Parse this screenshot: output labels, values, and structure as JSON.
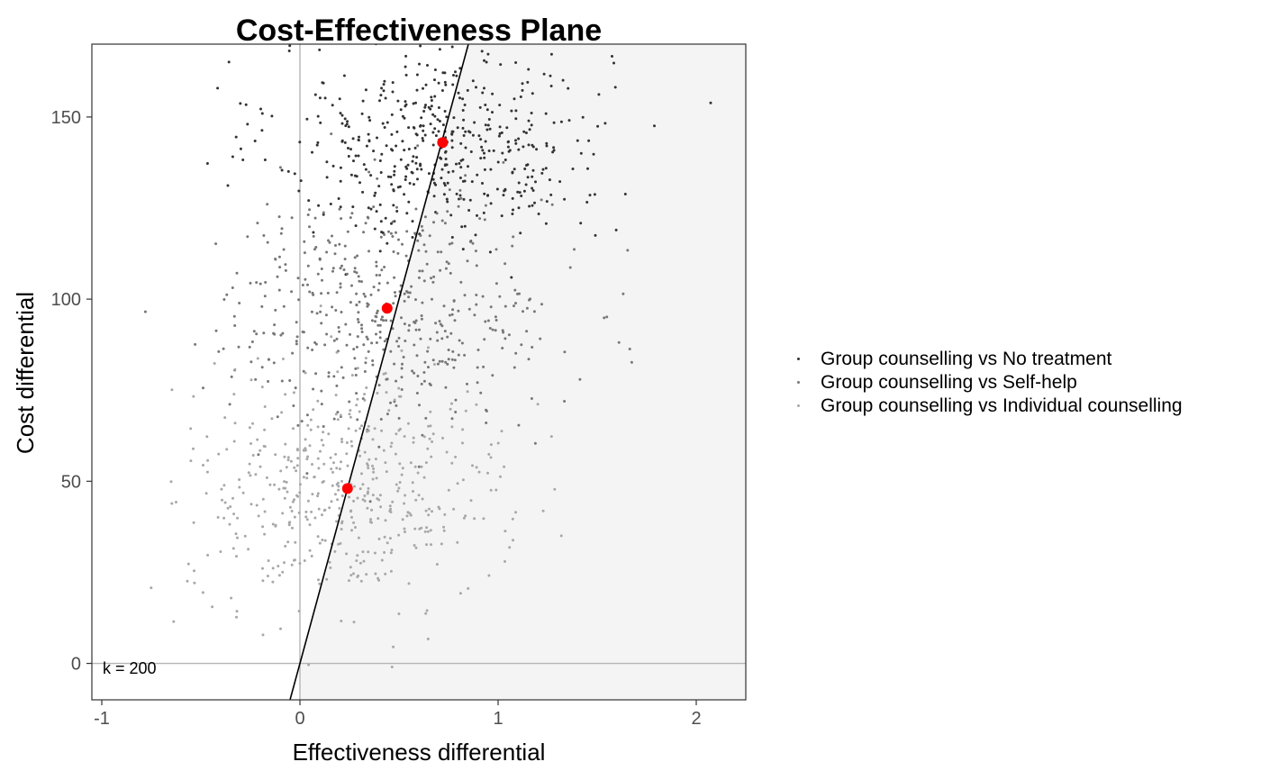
{
  "chart_data": {
    "type": "scatter",
    "title": "Cost-Effectiveness Plane",
    "xlabel": "Effectiveness differential",
    "ylabel": "Cost differential",
    "xlim": [
      -1.05,
      2.25
    ],
    "ylim": [
      -10,
      170
    ],
    "x_ticks": [
      -1,
      0,
      1,
      2
    ],
    "y_ticks": [
      0,
      50,
      100,
      150
    ],
    "grid": false,
    "legend_position": "right",
    "annotation": "k = 200",
    "wtp_threshold": 200,
    "shaded_region": "below willingness-to-pay line",
    "colors": {
      "shade": "#f4f4f4",
      "mean_points": "#ff0000",
      "axes_lines": "#b5b5b5",
      "wtp_line": "#000000"
    },
    "series": [
      {
        "name": "Group counselling vs No treatment",
        "color": "#333333",
        "cloud": {
          "x_mean": 0.72,
          "x_sd": 0.42,
          "y_mean": 143,
          "y_sd": 14,
          "n": 500
        },
        "mean": [
          0.72,
          143
        ]
      },
      {
        "name": "Group counselling vs Self-help",
        "color": "#777777",
        "cloud": {
          "x_mean": 0.44,
          "x_sd": 0.42,
          "y_mean": 97,
          "y_sd": 16,
          "n": 500
        },
        "mean": [
          0.44,
          97.5
        ]
      },
      {
        "name": "Group counselling vs Individual counselling",
        "color": "#a8a8a8",
        "cloud": {
          "x_mean": 0.24,
          "x_sd": 0.4,
          "y_mean": 48,
          "y_sd": 16,
          "n": 500
        },
        "mean": [
          0.24,
          48
        ]
      }
    ]
  }
}
